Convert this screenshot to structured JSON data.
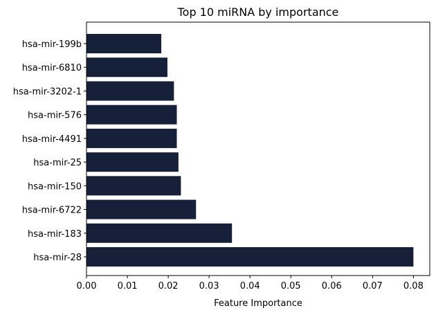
{
  "chart_data": {
    "type": "bar",
    "orientation": "horizontal",
    "title": "Top 10 miRNA by importance",
    "xlabel": "Feature Importance",
    "ylabel": "",
    "xlim": [
      0.0,
      0.084
    ],
    "xticks": [
      "0.00",
      "0.01",
      "0.02",
      "0.03",
      "0.04",
      "0.05",
      "0.06",
      "0.07",
      "0.08"
    ],
    "xtick_values": [
      0.0,
      0.01,
      0.02,
      0.03,
      0.04,
      0.05,
      0.06,
      0.07,
      0.08
    ],
    "categories": [
      "hsa-mir-199b",
      "hsa-mir-6810",
      "hsa-mir-3202-1",
      "hsa-mir-576",
      "hsa-mir-4491",
      "hsa-mir-25",
      "hsa-mir-150",
      "hsa-mir-6722",
      "hsa-mir-183",
      "hsa-mir-28"
    ],
    "values": [
      0.0183,
      0.0198,
      0.0214,
      0.0221,
      0.0221,
      0.0225,
      0.0231,
      0.0268,
      0.0356,
      0.08
    ],
    "bar_color": "#172039",
    "grid": false,
    "legend": "none"
  }
}
